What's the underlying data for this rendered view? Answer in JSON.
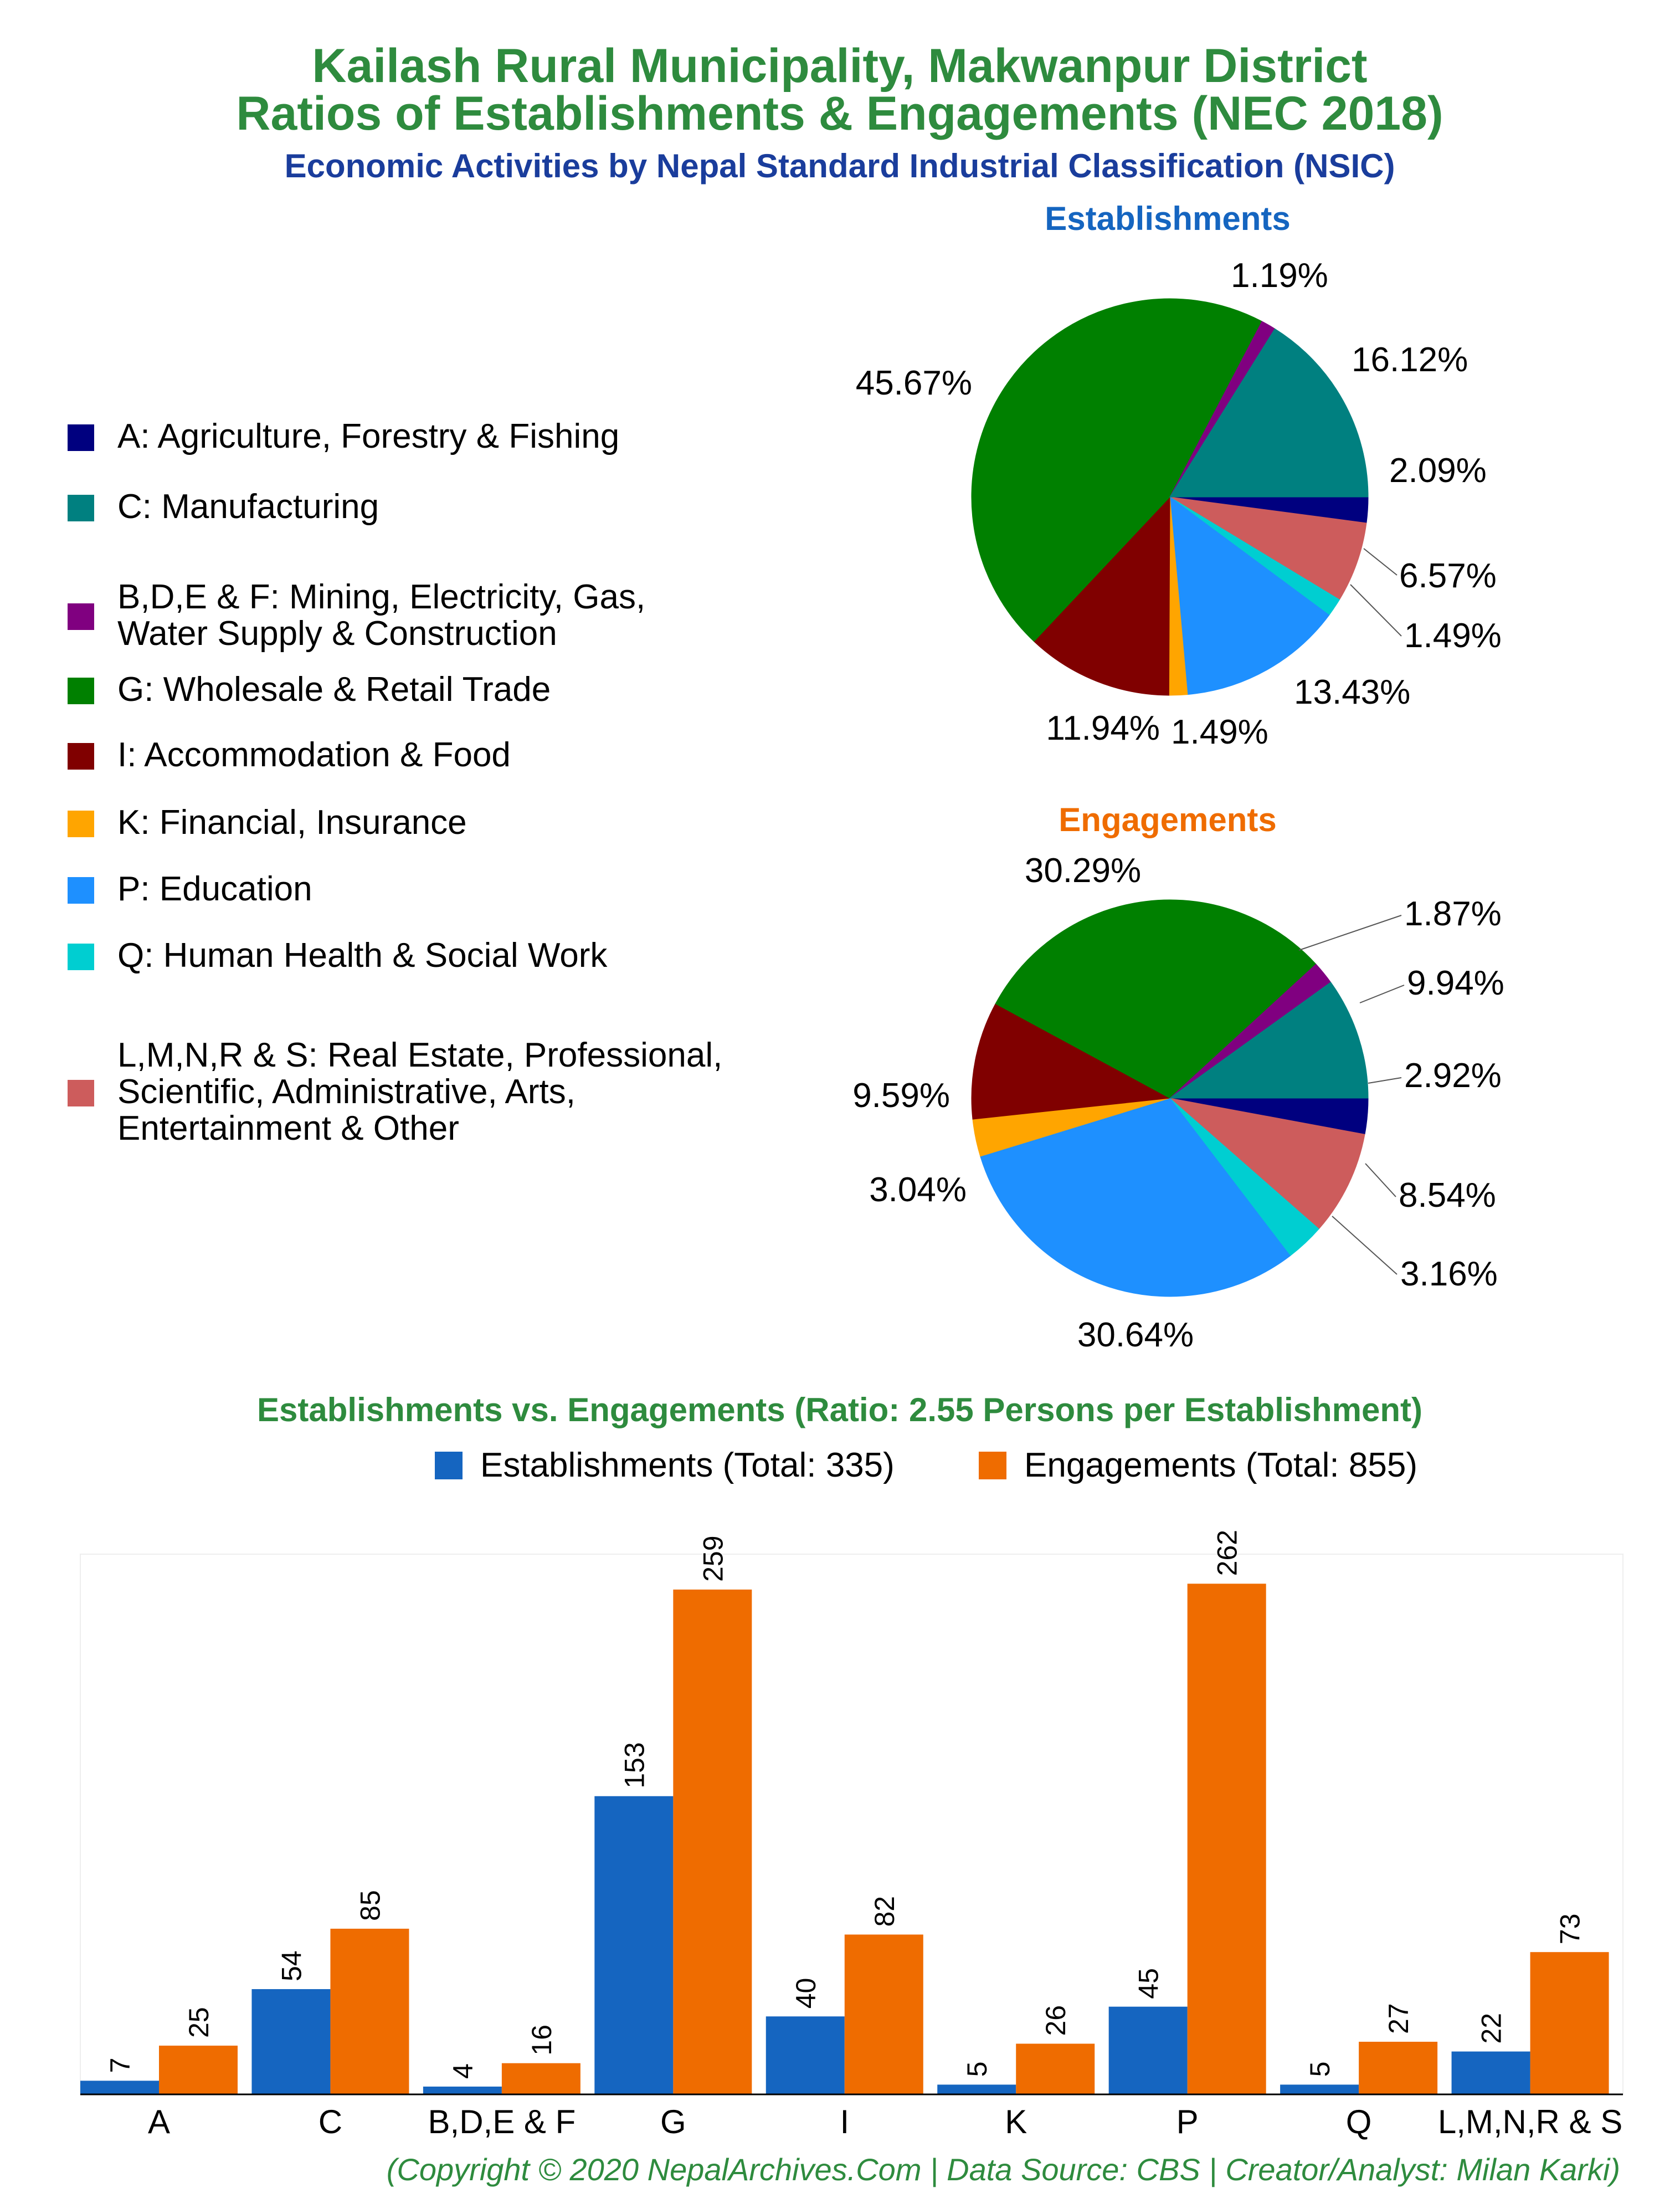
{
  "header": {
    "title_line1": "Kailash Rural Municipality, Makwanpur District",
    "title_line2": "Ratios of Establishments & Engagements (NEC 2018)",
    "subtitle": "Economic Activities by Nepal Standard Industrial Classification (NSIC)"
  },
  "colors": {
    "title_green": "#2e8b3e",
    "subtitle_blue": "#1a3d9c",
    "establishments_title": "#1565c0",
    "engagements_title": "#ef6c00",
    "bar_establishments": "#1565c0",
    "bar_engagements": "#ef6c00"
  },
  "legend": [
    {
      "label_lines": [
        "A: Agriculture, Forestry & Fishing"
      ],
      "color": "#00007f"
    },
    {
      "label_lines": [
        "C: Manufacturing"
      ],
      "color": "#008080"
    },
    {
      "label_lines": [
        "B,D,E & F: Mining, Electricity, Gas,",
        "Water Supply & Construction"
      ],
      "color": "#800080"
    },
    {
      "label_lines": [
        "G: Wholesale & Retail Trade"
      ],
      "color": "#008000"
    },
    {
      "label_lines": [
        "I: Accommodation & Food"
      ],
      "color": "#800000"
    },
    {
      "label_lines": [
        "K: Financial, Insurance"
      ],
      "color": "#ffa500"
    },
    {
      "label_lines": [
        "P: Education"
      ],
      "color": "#1e90ff"
    },
    {
      "label_lines": [
        "Q: Human Health & Social Work"
      ],
      "color": "#00ced1"
    },
    {
      "label_lines": [
        "L,M,N,R & S: Real Estate, Professional,",
        "Scientific, Administrative, Arts,",
        "Entertainment & Other"
      ],
      "color": "#cd5c5c"
    }
  ],
  "chart_data": [
    {
      "type": "pie",
      "title": "Establishments",
      "slice_order": [
        "A",
        "Q",
        "LMNRS",
        "P",
        "K",
        "I",
        "G",
        "BDEF",
        "C"
      ],
      "slices": [
        {
          "key": "A",
          "value": 2.09,
          "label": "2.09%",
          "color": "#00007f"
        },
        {
          "key": "LMNRS",
          "value": 6.57,
          "label": "6.57%",
          "color": "#cd5c5c"
        },
        {
          "key": "Q",
          "value": 1.49,
          "label": "1.49%",
          "color": "#00ced1"
        },
        {
          "key": "P",
          "value": 13.43,
          "label": "13.43%",
          "color": "#1e90ff"
        },
        {
          "key": "K",
          "value": 1.49,
          "label": "1.49%",
          "color": "#ffa500"
        },
        {
          "key": "I",
          "value": 11.94,
          "label": "11.94%",
          "color": "#800000"
        },
        {
          "key": "G",
          "value": 45.67,
          "label": "45.67%",
          "color": "#008000"
        },
        {
          "key": "BDEF",
          "value": 1.19,
          "label": "1.19%",
          "color": "#800080"
        },
        {
          "key": "C",
          "value": 16.12,
          "label": "16.12%",
          "color": "#008080"
        }
      ]
    },
    {
      "type": "pie",
      "title": "Engagements",
      "slices": [
        {
          "key": "A",
          "value": 2.92,
          "label": "2.92%",
          "color": "#00007f"
        },
        {
          "key": "LMNRS",
          "value": 8.54,
          "label": "8.54%",
          "color": "#cd5c5c"
        },
        {
          "key": "Q",
          "value": 3.16,
          "label": "3.16%",
          "color": "#00ced1"
        },
        {
          "key": "P",
          "value": 30.64,
          "label": "30.64%",
          "color": "#1e90ff"
        },
        {
          "key": "K",
          "value": 3.04,
          "label": "3.04%",
          "color": "#ffa500"
        },
        {
          "key": "I",
          "value": 9.59,
          "label": "9.59%",
          "color": "#800000"
        },
        {
          "key": "G",
          "value": 30.29,
          "label": "30.29%",
          "color": "#008000"
        },
        {
          "key": "BDEF",
          "value": 1.87,
          "label": "1.87%",
          "color": "#800080"
        },
        {
          "key": "C",
          "value": 9.94,
          "label": "9.94%",
          "color": "#008080"
        }
      ]
    },
    {
      "type": "bar",
      "title": "Establishments vs. Engagements (Ratio: 2.55 Persons per Establishment)",
      "categories": [
        "A",
        "C",
        "B,D,E & F",
        "G",
        "I",
        "K",
        "P",
        "Q",
        "L,M,N,R & S"
      ],
      "series": [
        {
          "name": "Establishments (Total: 335)",
          "values": [
            7,
            54,
            4,
            153,
            40,
            5,
            45,
            5,
            22
          ],
          "color": "#1565c0"
        },
        {
          "name": "Engagements (Total: 855)",
          "values": [
            25,
            85,
            16,
            259,
            82,
            26,
            262,
            27,
            73
          ],
          "color": "#ef6c00"
        }
      ],
      "ylim": [
        0,
        280
      ],
      "grid": false,
      "legend_position": "top"
    }
  ],
  "footer": {
    "credit": "(Copyright © 2020 NepalArchives.Com | Data Source: CBS | Creator/Analyst: Milan Karki)"
  }
}
